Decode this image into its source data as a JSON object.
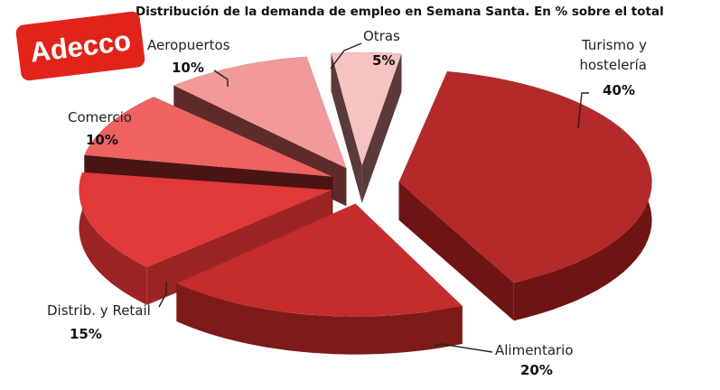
{
  "brand": {
    "logo_text": "Adecco",
    "logo_color": "#e2231a"
  },
  "chart_data": {
    "type": "pie",
    "style": "3d-exploded",
    "title": "Distribución de la demanda de empleo en Semana Santa. En % sobre el total",
    "unit": "%",
    "slices": [
      {
        "name": "Turismo y hostelería",
        "label_lines": [
          "Turismo y",
          "hostelería"
        ],
        "value": 40,
        "value_label": "40%",
        "color": "#b42a2a",
        "side_color": "#6e1414"
      },
      {
        "name": "Alimentario",
        "label_lines": [
          "Alimentario"
        ],
        "value": 20,
        "value_label": "20%",
        "color": "#c52d2d",
        "side_color": "#7d1a1a"
      },
      {
        "name": "Distrib. y Retail",
        "label_lines": [
          "Distrib. y Retail"
        ],
        "value": 15,
        "value_label": "15%",
        "color": "#e13838",
        "side_color": "#9c2424"
      },
      {
        "name": "Comercio",
        "label_lines": [
          "Comercio"
        ],
        "value": 10,
        "value_label": "10%",
        "color": "#ee6262",
        "side_color": "#4a1414"
      },
      {
        "name": "Aeropuertos",
        "label_lines": [
          "Aeropuertos"
        ],
        "value": 10,
        "value_label": "10%",
        "color": "#f29a9a",
        "side_color": "#5e2a2a"
      },
      {
        "name": "Otras",
        "label_lines": [
          "Otras"
        ],
        "value": 5,
        "value_label": "5%",
        "color": "#f6c2c2",
        "side_color": "#5a3a3a"
      }
    ]
  }
}
